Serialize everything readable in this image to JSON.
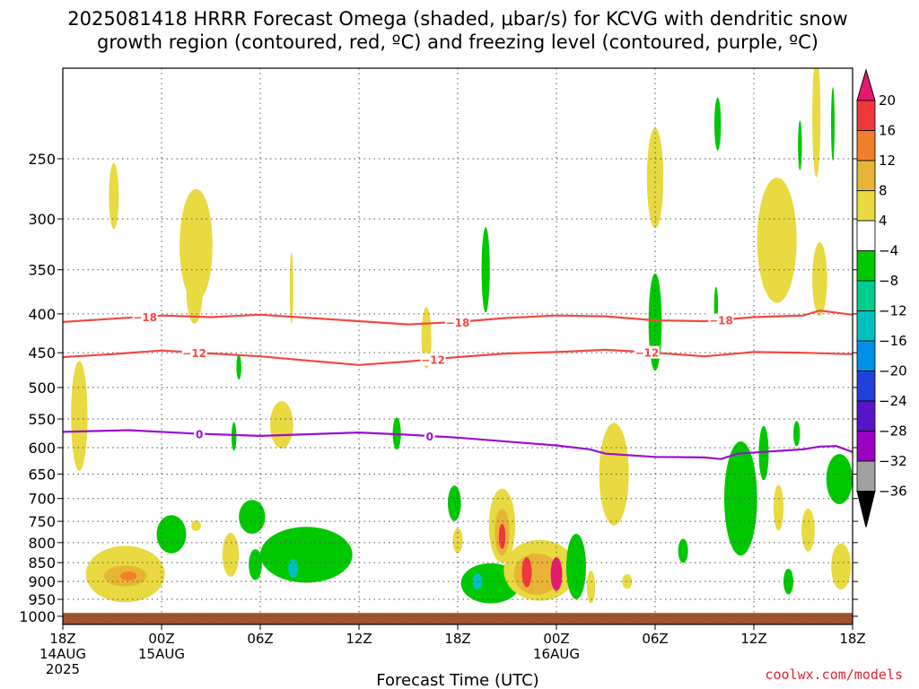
{
  "chart_data": {
    "type": "heatmap",
    "title_lines": [
      "2025081418 HRRR Forecast Omega (shaded, μbar/s) for KCVG with dendritic snow",
      "growth region (contoured, red, ºC) and freezing level (contoured, purple, ºC)"
    ],
    "xlabel": "Forecast Time (UTC)",
    "credit": "coolwx.com/models",
    "x_range_hours": [
      0,
      48
    ],
    "y_range_hpa": [
      190,
      1025
    ],
    "y_ticks": [
      250,
      300,
      350,
      400,
      450,
      500,
      550,
      600,
      650,
      700,
      750,
      800,
      850,
      900,
      950,
      1000
    ],
    "x_ticks": [
      {
        "hour": 0,
        "lines": [
          "18Z",
          "14AUG",
          "2025"
        ]
      },
      {
        "hour": 6,
        "lines": [
          "00Z",
          "15AUG"
        ]
      },
      {
        "hour": 12,
        "lines": [
          "06Z"
        ]
      },
      {
        "hour": 18,
        "lines": [
          "12Z"
        ]
      },
      {
        "hour": 24,
        "lines": [
          "18Z"
        ]
      },
      {
        "hour": 30,
        "lines": [
          "00Z",
          "16AUG"
        ]
      },
      {
        "hour": 36,
        "lines": [
          "06Z"
        ]
      },
      {
        "hour": 42,
        "lines": [
          "12Z"
        ]
      },
      {
        "hour": 48,
        "lines": [
          "18Z"
        ]
      }
    ],
    "grid": true,
    "colorbar": {
      "position": "right",
      "labels": [
        "20",
        "16",
        "12",
        "8",
        "4",
        "−4",
        "−8",
        "−12",
        "−16",
        "−20",
        "−24",
        "−28",
        "−32",
        "−36"
      ],
      "bins": [
        {
          "range": "> 20",
          "color": "#e8186e"
        },
        {
          "range": "16 to 20",
          "color": "#f0373a"
        },
        {
          "range": "12 to 16",
          "color": "#f07f2a"
        },
        {
          "range": "8 to 12",
          "color": "#e8b436"
        },
        {
          "range": "4 to 8",
          "color": "#e8da40"
        },
        {
          "range": "-4 to 4",
          "color": "#ffffff"
        },
        {
          "range": "-8 to -4",
          "color": "#00c800"
        },
        {
          "range": "-12 to -8",
          "color": "#00cc8c"
        },
        {
          "range": "-16 to -12",
          "color": "#00c0c0"
        },
        {
          "range": "-20 to -16",
          "color": "#0090e8"
        },
        {
          "range": "-24 to -20",
          "color": "#2040dc"
        },
        {
          "range": "-28 to -24",
          "color": "#5a14c8"
        },
        {
          "range": "-32 to -28",
          "color": "#9a00c0"
        },
        {
          "range": "-36 to -32",
          "color": "#a0a0a0"
        },
        {
          "range": "< -36",
          "color": "#000000"
        }
      ]
    },
    "contours": [
      {
        "label": "−18",
        "color": "#f04a40",
        "label_hours": [
          5,
          24,
          40
        ],
        "points": [
          [
            0,
            410
          ],
          [
            3,
            406
          ],
          [
            6,
            402
          ],
          [
            9,
            404
          ],
          [
            12,
            401
          ],
          [
            15,
            405
          ],
          [
            18,
            409
          ],
          [
            21,
            413
          ],
          [
            24,
            410
          ],
          [
            27,
            405
          ],
          [
            30,
            402
          ],
          [
            33,
            403
          ],
          [
            36,
            408
          ],
          [
            39,
            409
          ],
          [
            42,
            404
          ],
          [
            45,
            402
          ],
          [
            46,
            396
          ],
          [
            48,
            401
          ]
        ]
      },
      {
        "label": "−12",
        "color": "#f04a40",
        "label_hours": [
          8,
          22.5,
          35.5
        ],
        "points": [
          [
            0,
            456
          ],
          [
            3,
            452
          ],
          [
            6,
            447
          ],
          [
            9,
            451
          ],
          [
            12,
            455
          ],
          [
            15,
            461
          ],
          [
            18,
            467
          ],
          [
            21,
            462
          ],
          [
            24,
            456
          ],
          [
            27,
            451
          ],
          [
            30,
            449
          ],
          [
            33,
            446
          ],
          [
            36,
            450
          ],
          [
            39,
            455
          ],
          [
            42,
            449
          ],
          [
            45,
            450
          ],
          [
            48,
            452
          ]
        ]
      },
      {
        "label": "0",
        "color": "#9a10d0",
        "label_hours": [
          8.3,
          22.3
        ],
        "points": [
          [
            0,
            572
          ],
          [
            4,
            569
          ],
          [
            8,
            575
          ],
          [
            12,
            579
          ],
          [
            15,
            576
          ],
          [
            18,
            573
          ],
          [
            21,
            577
          ],
          [
            24,
            582
          ],
          [
            27,
            589
          ],
          [
            30,
            596
          ],
          [
            32,
            603
          ],
          [
            33,
            611
          ],
          [
            36,
            617
          ],
          [
            39,
            618
          ],
          [
            40,
            621
          ],
          [
            41,
            611
          ],
          [
            45,
            603
          ],
          [
            46,
            598
          ],
          [
            47,
            597
          ],
          [
            48,
            608
          ]
        ]
      }
    ],
    "surface": {
      "pressure_top_hpa": 990,
      "color": "#a0522d"
    },
    "omega_features": [
      {
        "v": 6,
        "x": 1.0,
        "p": 545,
        "rx": 0.5,
        "rp": 90
      },
      {
        "v": 6,
        "x": 3.1,
        "p": 280,
        "rx": 0.3,
        "rp": 28
      },
      {
        "v": 6,
        "x": 3.8,
        "p": 880,
        "rx": 2.4,
        "rp": 75
      },
      {
        "v": 10,
        "x": 3.8,
        "p": 885,
        "rx": 1.3,
        "rp": 28
      },
      {
        "v": 14,
        "x": 4.0,
        "p": 885,
        "rx": 0.5,
        "rp": 12
      },
      {
        "v": -6,
        "x": 6.6,
        "p": 780,
        "rx": 0.9,
        "rp": 45
      },
      {
        "v": 6,
        "x": 8.1,
        "p": 325,
        "rx": 1.0,
        "rp": 55
      },
      {
        "v": 6,
        "x": 8.0,
        "p": 370,
        "rx": 0.5,
        "rp": 40
      },
      {
        "v": 6,
        "x": 8.1,
        "p": 760,
        "rx": 0.3,
        "rp": 12
      },
      {
        "v": 6,
        "x": 10.2,
        "p": 830,
        "rx": 0.5,
        "rp": 55
      },
      {
        "v": -6,
        "x": 11.5,
        "p": 740,
        "rx": 0.8,
        "rp": 38
      },
      {
        "v": -6,
        "x": 11.7,
        "p": 855,
        "rx": 0.4,
        "rp": 40
      },
      {
        "v": -6,
        "x": 10.7,
        "p": 470,
        "rx": 0.15,
        "rp": 18
      },
      {
        "v": 6,
        "x": 13.3,
        "p": 560,
        "rx": 0.7,
        "rp": 40
      },
      {
        "v": 6,
        "x": 13.9,
        "p": 370,
        "rx": 0.1,
        "rp": 40
      },
      {
        "v": -6,
        "x": 14.8,
        "p": 830,
        "rx": 2.8,
        "rp": 70
      },
      {
        "v": -14,
        "x": 14.0,
        "p": 865,
        "rx": 0.3,
        "rp": 25
      },
      {
        "v": -6,
        "x": 10.4,
        "p": 580,
        "rx": 0.15,
        "rp": 25
      },
      {
        "v": -6,
        "x": 20.3,
        "p": 575,
        "rx": 0.25,
        "rp": 28
      },
      {
        "v": 6,
        "x": 22.1,
        "p": 430,
        "rx": 0.3,
        "rp": 40
      },
      {
        "v": -6,
        "x": 23.8,
        "p": 710,
        "rx": 0.4,
        "rp": 38
      },
      {
        "v": 6,
        "x": 24.0,
        "p": 795,
        "rx": 0.3,
        "rp": 30
      },
      {
        "v": -6,
        "x": 25.7,
        "p": 350,
        "rx": 0.25,
        "rp": 45
      },
      {
        "v": 6,
        "x": 26.7,
        "p": 760,
        "rx": 0.8,
        "rp": 85
      },
      {
        "v": 10,
        "x": 26.7,
        "p": 775,
        "rx": 0.45,
        "rp": 55
      },
      {
        "v": 18,
        "x": 26.7,
        "p": 785,
        "rx": 0.2,
        "rp": 30
      },
      {
        "v": -6,
        "x": 26.0,
        "p": 905,
        "rx": 1.8,
        "rp": 55
      },
      {
        "v": -14,
        "x": 25.2,
        "p": 900,
        "rx": 0.3,
        "rp": 22
      },
      {
        "v": 6,
        "x": 29.0,
        "p": 870,
        "rx": 2.2,
        "rp": 80
      },
      {
        "v": 10,
        "x": 28.8,
        "p": 880,
        "rx": 1.4,
        "rp": 55
      },
      {
        "v": 18,
        "x": 28.2,
        "p": 875,
        "rx": 0.3,
        "rp": 40
      },
      {
        "v": 22,
        "x": 30.0,
        "p": 880,
        "rx": 0.35,
        "rp": 45
      },
      {
        "v": -6,
        "x": 31.2,
        "p": 860,
        "rx": 0.6,
        "rp": 85
      },
      {
        "v": 6,
        "x": 32.1,
        "p": 915,
        "rx": 0.25,
        "rp": 45
      },
      {
        "v": 6,
        "x": 34.3,
        "p": 900,
        "rx": 0.3,
        "rp": 20
      },
      {
        "v": 6,
        "x": 33.5,
        "p": 650,
        "rx": 0.9,
        "rp": 100
      },
      {
        "v": 6,
        "x": 36.0,
        "p": 265,
        "rx": 0.5,
        "rp": 40
      },
      {
        "v": -6,
        "x": 36.0,
        "p": 410,
        "rx": 0.4,
        "rp": 60
      },
      {
        "v": -6,
        "x": 37.7,
        "p": 820,
        "rx": 0.3,
        "rp": 30
      },
      {
        "v": -6,
        "x": 39.8,
        "p": 225,
        "rx": 0.2,
        "rp": 18
      },
      {
        "v": -6,
        "x": 39.7,
        "p": 390,
        "rx": 0.12,
        "rp": 22
      },
      {
        "v": -6,
        "x": 41.2,
        "p": 700,
        "rx": 1.0,
        "rp": 120
      },
      {
        "v": -6,
        "x": 42.6,
        "p": 610,
        "rx": 0.3,
        "rp": 50
      },
      {
        "v": 6,
        "x": 43.4,
        "p": 320,
        "rx": 1.2,
        "rp": 60
      },
      {
        "v": 6,
        "x": 43.5,
        "p": 720,
        "rx": 0.3,
        "rp": 50
      },
      {
        "v": 6,
        "x": 45.3,
        "p": 770,
        "rx": 0.4,
        "rp": 50
      },
      {
        "v": -6,
        "x": 44.6,
        "p": 575,
        "rx": 0.2,
        "rp": 22
      },
      {
        "v": -6,
        "x": 44.1,
        "p": 900,
        "rx": 0.3,
        "rp": 35
      },
      {
        "v": -6,
        "x": 44.8,
        "p": 240,
        "rx": 0.12,
        "rp": 18
      },
      {
        "v": 6,
        "x": 45.8,
        "p": 220,
        "rx": 0.25,
        "rp": 40
      },
      {
        "v": -6,
        "x": 46.8,
        "p": 225,
        "rx": 0.1,
        "rp": 25
      },
      {
        "v": 6,
        "x": 46.0,
        "p": 360,
        "rx": 0.45,
        "rp": 40
      },
      {
        "v": -6,
        "x": 47.2,
        "p": 660,
        "rx": 0.8,
        "rp": 50
      },
      {
        "v": 6,
        "x": 47.3,
        "p": 860,
        "rx": 0.6,
        "rp": 60
      }
    ]
  }
}
